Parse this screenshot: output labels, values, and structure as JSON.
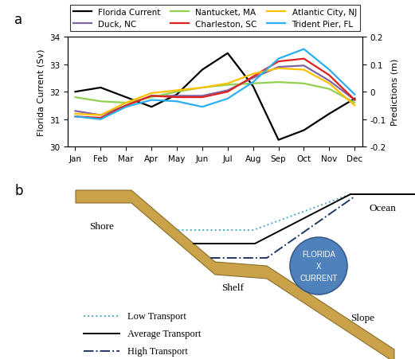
{
  "panel_labels": [
    "a",
    "b"
  ],
  "chart_data": {
    "type": "line",
    "categories": [
      "Jan",
      "Feb",
      "Mar",
      "Apr",
      "May",
      "Jun",
      "Jul",
      "Aug",
      "Sep",
      "Oct",
      "Nov",
      "Dec"
    ],
    "ylabel": "Florida Current (Sv)",
    "y2label": "Predictions (m)",
    "ylim": [
      30,
      34
    ],
    "yticks": [
      30,
      31,
      32,
      33,
      34
    ],
    "y2lim": [
      -0.2,
      0.2
    ],
    "y2ticks": [
      -0.2,
      -0.1,
      0,
      0.1,
      0.2
    ],
    "grid": false,
    "legend": "upper center",
    "series": [
      {
        "name": "Florida Current",
        "color": "#000000",
        "line_style": "solid",
        "axis": "y",
        "values": [
          32.0,
          32.15,
          31.8,
          31.45,
          31.9,
          32.8,
          33.4,
          32.2,
          30.25,
          30.6,
          31.2,
          31.75
        ]
      },
      {
        "name": "Duck, NC",
        "color": "#8064a2",
        "line_style": "solid",
        "axis": "y2",
        "values": [
          -0.07,
          -0.085,
          -0.05,
          -0.015,
          -0.015,
          -0.015,
          0.005,
          0.05,
          0.09,
          0.095,
          0.04,
          -0.03
        ]
      },
      {
        "name": "Nantucket, MA",
        "color": "#92d050",
        "line_style": "solid",
        "axis": "y2",
        "values": [
          -0.02,
          -0.035,
          -0.04,
          -0.02,
          0.0,
          0.015,
          0.025,
          0.03,
          0.035,
          0.03,
          0.01,
          -0.04
        ]
      },
      {
        "name": "Charleston, SC",
        "color": "#e0201c",
        "line_style": "solid",
        "axis": "y2",
        "values": [
          -0.09,
          -0.095,
          -0.05,
          -0.015,
          -0.02,
          -0.02,
          0.0,
          0.055,
          0.11,
          0.12,
          0.06,
          -0.03
        ]
      },
      {
        "name": "Atlantic City, NJ",
        "color": "#ffc000",
        "line_style": "solid",
        "axis": "y2",
        "values": [
          -0.08,
          -0.085,
          -0.04,
          -0.005,
          0.005,
          0.015,
          0.03,
          0.065,
          0.085,
          0.08,
          0.03,
          -0.05
        ]
      },
      {
        "name": "Trident Pier, FL",
        "color": "#2ab0f0",
        "line_style": "solid",
        "axis": "y2",
        "values": [
          -0.09,
          -0.1,
          -0.055,
          -0.03,
          -0.035,
          -0.055,
          -0.025,
          0.035,
          0.12,
          0.155,
          0.08,
          -0.01
        ]
      }
    ]
  },
  "diagram": {
    "labels": {
      "shore": "Shore",
      "shelf": "Shelf",
      "slope": "Slope",
      "ocean": "Ocean"
    },
    "current": [
      "FLORIDA",
      "X",
      "CURRENT"
    ],
    "legend": [
      {
        "label": "Low Transport",
        "color": "#4bacc6",
        "line_style": "dotted"
      },
      {
        "label": "Average Transport",
        "color": "#000000",
        "line_style": "solid"
      },
      {
        "label": "High Transport",
        "color": "#1f3864",
        "line_style": "dashdot"
      }
    ]
  }
}
